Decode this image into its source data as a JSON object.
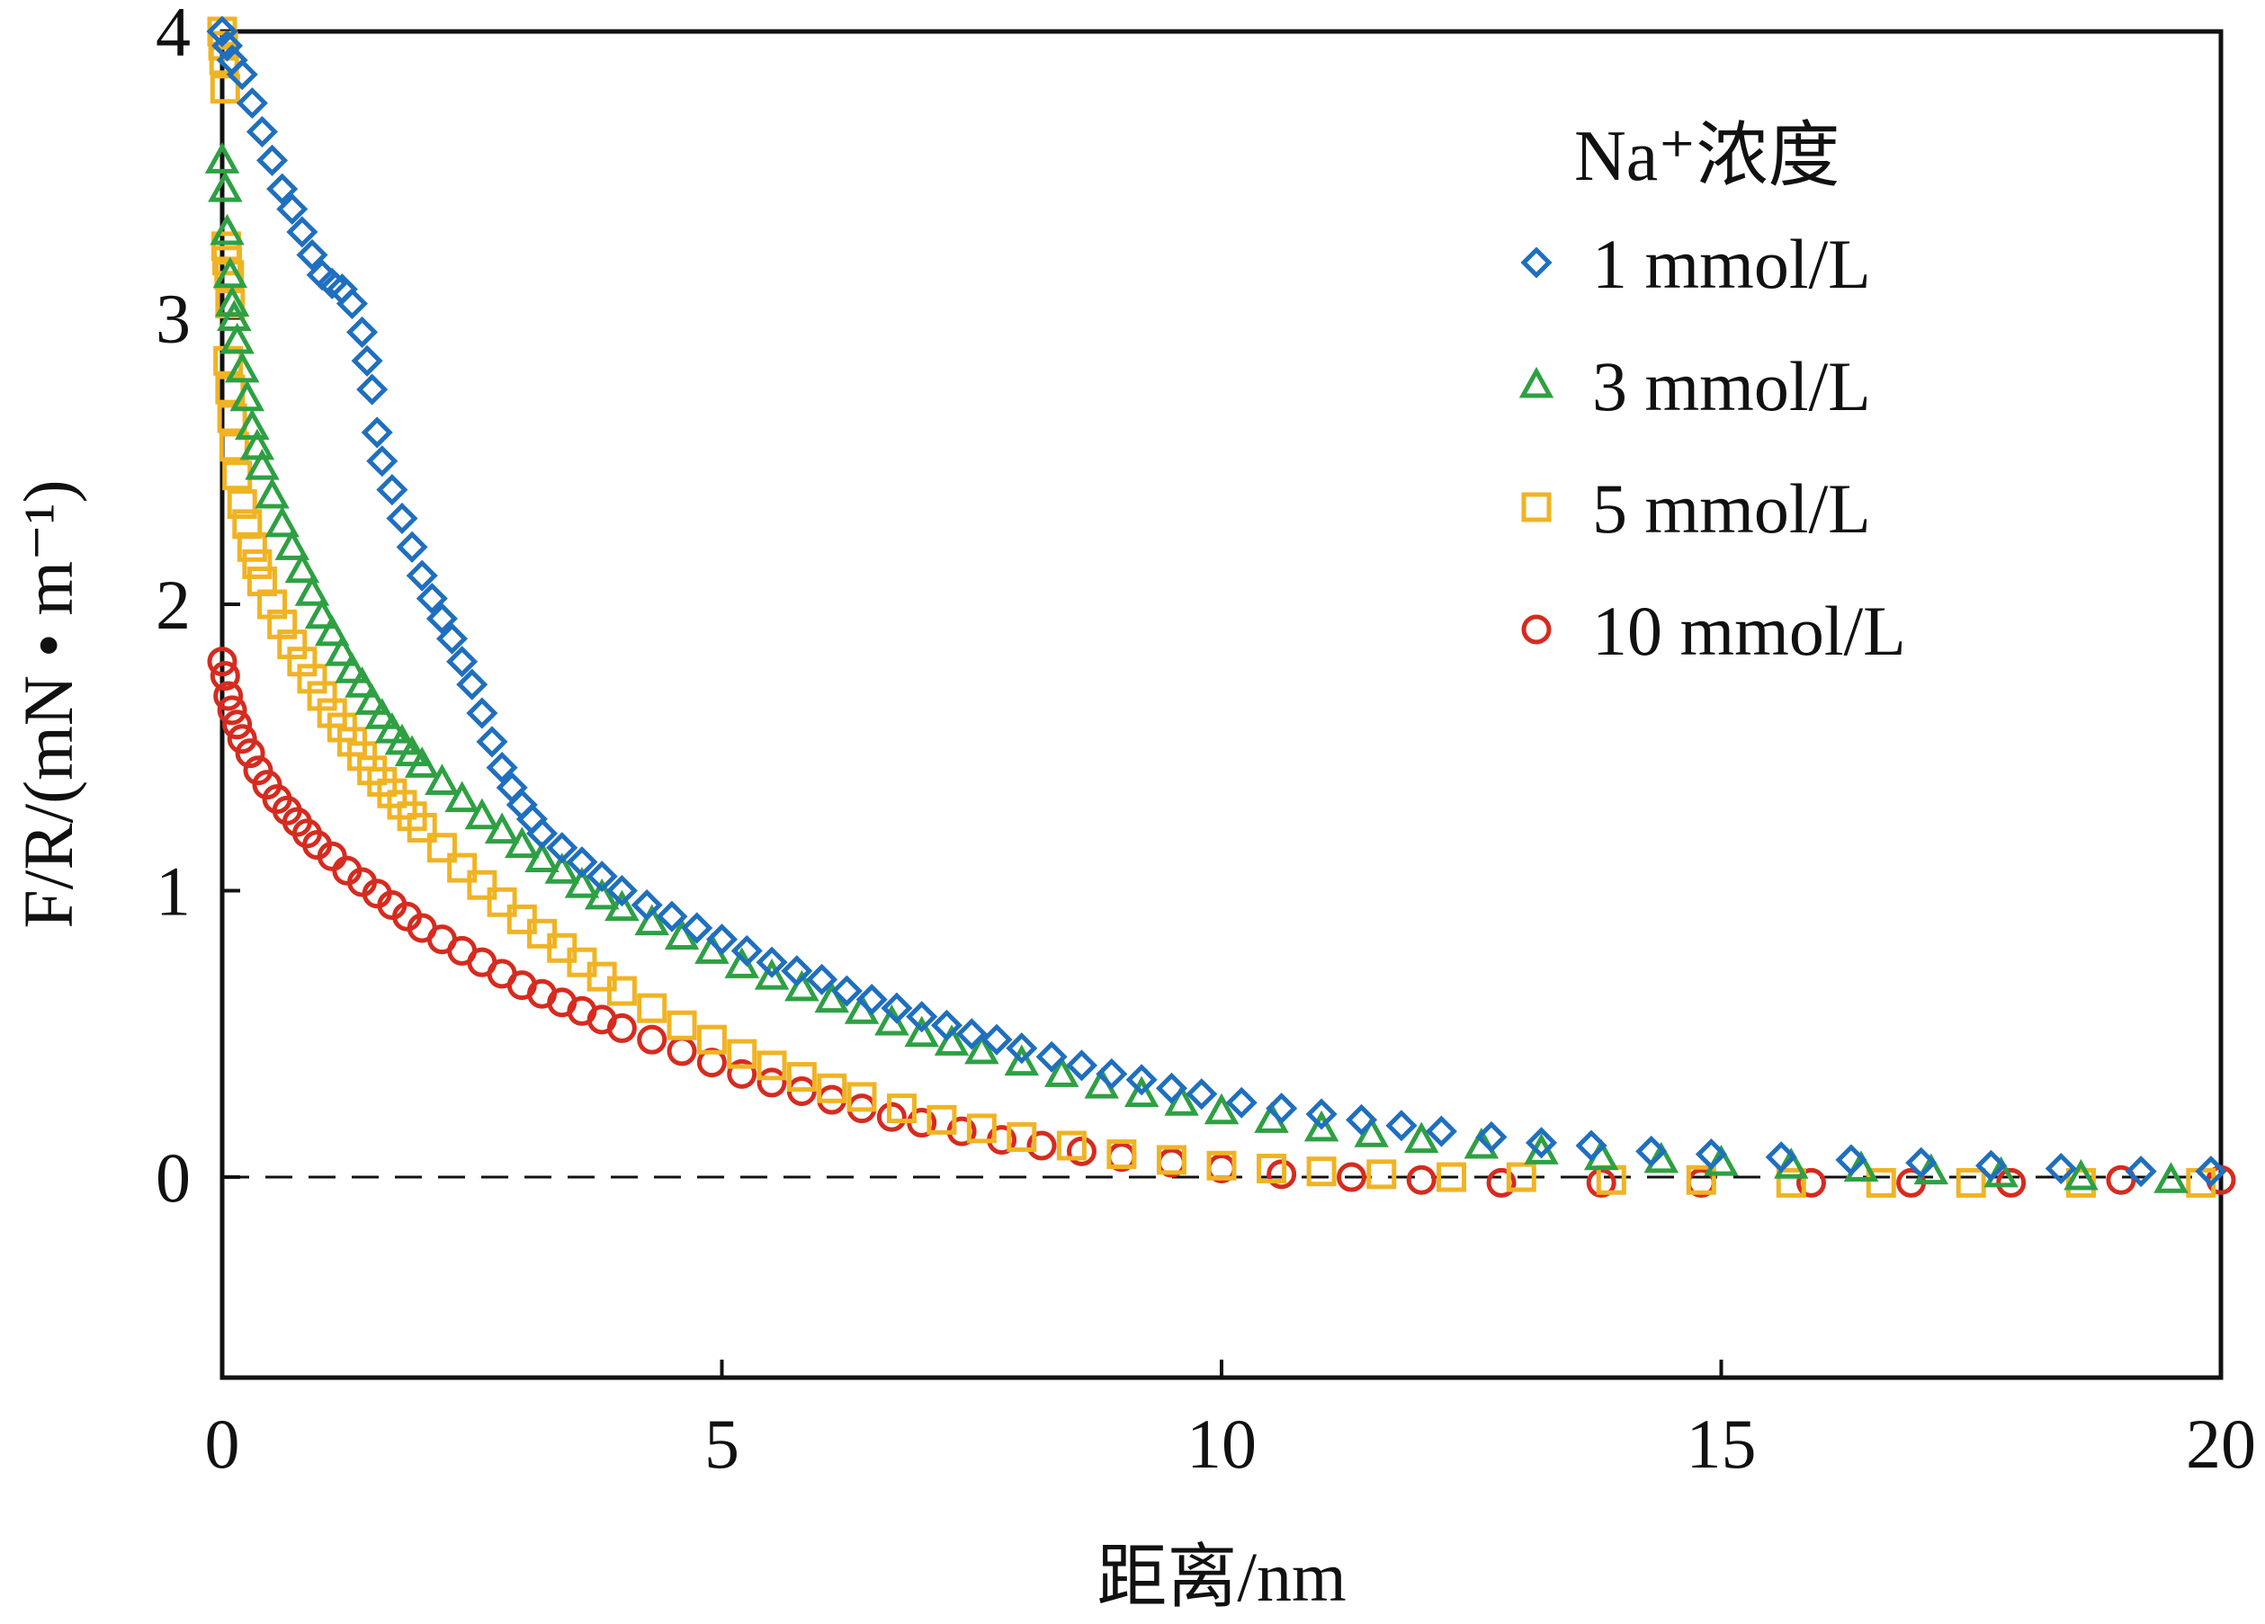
{
  "chart_data": {
    "type": "scatter",
    "xlabel": "距离/nm",
    "ylabel": "F/R/(mN • m⁻¹)",
    "xlim": [
      0,
      20
    ],
    "ylim": [
      -0.7,
      4
    ],
    "xticks": [
      "0",
      "5",
      "10",
      "15",
      "20"
    ],
    "yticks": [
      "0",
      "1",
      "2",
      "3",
      "4"
    ],
    "grid": false,
    "zero_line": "dashed",
    "legend": {
      "title": "Na⁺浓度",
      "position": "top-right"
    },
    "series": [
      {
        "name": "1 mmol/L",
        "marker": "diamond",
        "color": "#1f6fbf",
        "points": [
          [
            0.0,
            4.0
          ],
          [
            0.05,
            3.95
          ],
          [
            0.1,
            3.9
          ],
          [
            0.2,
            3.85
          ],
          [
            0.3,
            3.75
          ],
          [
            0.4,
            3.65
          ],
          [
            0.5,
            3.55
          ],
          [
            0.6,
            3.45
          ],
          [
            0.7,
            3.38
          ],
          [
            0.8,
            3.3
          ],
          [
            0.9,
            3.22
          ],
          [
            1.0,
            3.15
          ],
          [
            1.1,
            3.12
          ],
          [
            1.2,
            3.1
          ],
          [
            1.3,
            3.05
          ],
          [
            1.4,
            2.95
          ],
          [
            1.45,
            2.85
          ],
          [
            1.5,
            2.75
          ],
          [
            1.55,
            2.6
          ],
          [
            1.6,
            2.5
          ],
          [
            1.7,
            2.4
          ],
          [
            1.8,
            2.3
          ],
          [
            1.9,
            2.2
          ],
          [
            2.0,
            2.1
          ],
          [
            2.1,
            2.02
          ],
          [
            2.2,
            1.95
          ],
          [
            2.3,
            1.88
          ],
          [
            2.4,
            1.8
          ],
          [
            2.5,
            1.72
          ],
          [
            2.6,
            1.62
          ],
          [
            2.7,
            1.52
          ],
          [
            2.8,
            1.43
          ],
          [
            2.9,
            1.36
          ],
          [
            3.0,
            1.3
          ],
          [
            3.1,
            1.25
          ],
          [
            3.2,
            1.2
          ],
          [
            3.4,
            1.15
          ],
          [
            3.6,
            1.1
          ],
          [
            3.8,
            1.05
          ],
          [
            4.0,
            1.0
          ],
          [
            4.25,
            0.95
          ],
          [
            4.5,
            0.91
          ],
          [
            4.75,
            0.87
          ],
          [
            5.0,
            0.83
          ],
          [
            5.25,
            0.79
          ],
          [
            5.5,
            0.75
          ],
          [
            5.75,
            0.72
          ],
          [
            6.0,
            0.69
          ],
          [
            6.25,
            0.65
          ],
          [
            6.5,
            0.62
          ],
          [
            6.75,
            0.59
          ],
          [
            7.0,
            0.56
          ],
          [
            7.25,
            0.53
          ],
          [
            7.5,
            0.5
          ],
          [
            7.75,
            0.48
          ],
          [
            8.0,
            0.45
          ],
          [
            8.3,
            0.42
          ],
          [
            8.6,
            0.39
          ],
          [
            8.9,
            0.36
          ],
          [
            9.2,
            0.34
          ],
          [
            9.5,
            0.31
          ],
          [
            9.8,
            0.29
          ],
          [
            10.2,
            0.26
          ],
          [
            10.6,
            0.24
          ],
          [
            11.0,
            0.22
          ],
          [
            11.4,
            0.2
          ],
          [
            11.8,
            0.18
          ],
          [
            12.2,
            0.16
          ],
          [
            12.7,
            0.14
          ],
          [
            13.2,
            0.12
          ],
          [
            13.7,
            0.11
          ],
          [
            14.3,
            0.09
          ],
          [
            14.9,
            0.08
          ],
          [
            15.6,
            0.07
          ],
          [
            16.3,
            0.06
          ],
          [
            17.0,
            0.05
          ],
          [
            17.7,
            0.04
          ],
          [
            18.4,
            0.03
          ],
          [
            19.2,
            0.02
          ],
          [
            19.9,
            0.02
          ]
        ]
      },
      {
        "name": "3 mmol/L",
        "marker": "triangle",
        "color": "#2ea043",
        "points": [
          [
            0.0,
            3.55
          ],
          [
            0.03,
            3.45
          ],
          [
            0.05,
            3.3
          ],
          [
            0.08,
            3.15
          ],
          [
            0.1,
            3.05
          ],
          [
            0.12,
            3.0
          ],
          [
            0.15,
            2.92
          ],
          [
            0.2,
            2.82
          ],
          [
            0.25,
            2.72
          ],
          [
            0.3,
            2.62
          ],
          [
            0.35,
            2.55
          ],
          [
            0.4,
            2.48
          ],
          [
            0.5,
            2.38
          ],
          [
            0.6,
            2.28
          ],
          [
            0.7,
            2.2
          ],
          [
            0.8,
            2.12
          ],
          [
            0.9,
            2.04
          ],
          [
            1.0,
            1.96
          ],
          [
            1.1,
            1.9
          ],
          [
            1.2,
            1.83
          ],
          [
            1.3,
            1.77
          ],
          [
            1.4,
            1.72
          ],
          [
            1.5,
            1.66
          ],
          [
            1.6,
            1.61
          ],
          [
            1.7,
            1.56
          ],
          [
            1.8,
            1.52
          ],
          [
            1.9,
            1.48
          ],
          [
            2.0,
            1.44
          ],
          [
            2.2,
            1.38
          ],
          [
            2.4,
            1.32
          ],
          [
            2.6,
            1.26
          ],
          [
            2.8,
            1.21
          ],
          [
            3.0,
            1.16
          ],
          [
            3.2,
            1.11
          ],
          [
            3.4,
            1.07
          ],
          [
            3.6,
            1.02
          ],
          [
            3.8,
            0.98
          ],
          [
            4.0,
            0.94
          ],
          [
            4.3,
            0.89
          ],
          [
            4.6,
            0.84
          ],
          [
            4.9,
            0.79
          ],
          [
            5.2,
            0.74
          ],
          [
            5.5,
            0.7
          ],
          [
            5.8,
            0.66
          ],
          [
            6.1,
            0.62
          ],
          [
            6.4,
            0.58
          ],
          [
            6.7,
            0.54
          ],
          [
            7.0,
            0.5
          ],
          [
            7.3,
            0.47
          ],
          [
            7.6,
            0.44
          ],
          [
            8.0,
            0.4
          ],
          [
            8.4,
            0.36
          ],
          [
            8.8,
            0.32
          ],
          [
            9.2,
            0.29
          ],
          [
            9.6,
            0.26
          ],
          [
            10.0,
            0.23
          ],
          [
            10.5,
            0.2
          ],
          [
            11.0,
            0.17
          ],
          [
            11.5,
            0.15
          ],
          [
            12.0,
            0.13
          ],
          [
            12.6,
            0.11
          ],
          [
            13.2,
            0.09
          ],
          [
            13.8,
            0.07
          ],
          [
            14.4,
            0.06
          ],
          [
            15.0,
            0.05
          ],
          [
            15.7,
            0.04
          ],
          [
            16.4,
            0.03
          ],
          [
            17.1,
            0.02
          ],
          [
            17.8,
            0.01
          ],
          [
            18.6,
            0.0
          ],
          [
            19.5,
            -0.01
          ]
        ]
      },
      {
        "name": "5 mmol/L",
        "marker": "square",
        "color": "#f0b323",
        "points": [
          [
            0.0,
            4.0
          ],
          [
            0.01,
            3.95
          ],
          [
            0.02,
            3.9
          ],
          [
            0.03,
            3.8
          ],
          [
            0.04,
            3.25
          ],
          [
            0.05,
            3.2
          ],
          [
            0.07,
            3.15
          ],
          [
            0.08,
            3.05
          ],
          [
            0.06,
            2.85
          ],
          [
            0.08,
            2.75
          ],
          [
            0.1,
            2.65
          ],
          [
            0.12,
            2.55
          ],
          [
            0.15,
            2.45
          ],
          [
            0.2,
            2.35
          ],
          [
            0.25,
            2.28
          ],
          [
            0.3,
            2.2
          ],
          [
            0.35,
            2.14
          ],
          [
            0.4,
            2.08
          ],
          [
            0.5,
            2.0
          ],
          [
            0.6,
            1.93
          ],
          [
            0.7,
            1.86
          ],
          [
            0.8,
            1.8
          ],
          [
            0.9,
            1.74
          ],
          [
            1.0,
            1.68
          ],
          [
            1.1,
            1.62
          ],
          [
            1.2,
            1.57
          ],
          [
            1.3,
            1.52
          ],
          [
            1.4,
            1.47
          ],
          [
            1.5,
            1.42
          ],
          [
            1.6,
            1.38
          ],
          [
            1.7,
            1.34
          ],
          [
            1.8,
            1.3
          ],
          [
            1.9,
            1.26
          ],
          [
            2.0,
            1.22
          ],
          [
            2.2,
            1.15
          ],
          [
            2.4,
            1.08
          ],
          [
            2.6,
            1.02
          ],
          [
            2.8,
            0.96
          ],
          [
            3.0,
            0.9
          ],
          [
            3.2,
            0.85
          ],
          [
            3.4,
            0.8
          ],
          [
            3.6,
            0.75
          ],
          [
            3.8,
            0.7
          ],
          [
            4.0,
            0.65
          ],
          [
            4.3,
            0.59
          ],
          [
            4.6,
            0.53
          ],
          [
            4.9,
            0.48
          ],
          [
            5.2,
            0.43
          ],
          [
            5.5,
            0.39
          ],
          [
            5.8,
            0.35
          ],
          [
            6.1,
            0.31
          ],
          [
            6.4,
            0.28
          ],
          [
            6.8,
            0.24
          ],
          [
            7.2,
            0.2
          ],
          [
            7.6,
            0.17
          ],
          [
            8.0,
            0.14
          ],
          [
            8.5,
            0.11
          ],
          [
            9.0,
            0.08
          ],
          [
            9.5,
            0.06
          ],
          [
            10.0,
            0.04
          ],
          [
            10.5,
            0.03
          ],
          [
            11.0,
            0.02
          ],
          [
            11.6,
            0.01
          ],
          [
            12.3,
            0.0
          ],
          [
            13.0,
            0.0
          ],
          [
            13.9,
            -0.01
          ],
          [
            14.8,
            -0.01
          ],
          [
            15.7,
            -0.02
          ],
          [
            16.6,
            -0.02
          ],
          [
            17.5,
            -0.02
          ],
          [
            18.6,
            -0.02
          ],
          [
            19.8,
            -0.02
          ]
        ]
      },
      {
        "name": "10 mmol/L",
        "marker": "circle",
        "color": "#d62b1f",
        "points": [
          [
            0.0,
            1.8
          ],
          [
            0.03,
            1.75
          ],
          [
            0.06,
            1.68
          ],
          [
            0.1,
            1.63
          ],
          [
            0.15,
            1.58
          ],
          [
            0.2,
            1.53
          ],
          [
            0.28,
            1.48
          ],
          [
            0.36,
            1.42
          ],
          [
            0.45,
            1.37
          ],
          [
            0.55,
            1.32
          ],
          [
            0.65,
            1.28
          ],
          [
            0.75,
            1.24
          ],
          [
            0.85,
            1.2
          ],
          [
            0.95,
            1.16
          ],
          [
            1.1,
            1.12
          ],
          [
            1.25,
            1.07
          ],
          [
            1.4,
            1.03
          ],
          [
            1.55,
            0.99
          ],
          [
            1.7,
            0.95
          ],
          [
            1.85,
            0.91
          ],
          [
            2.0,
            0.87
          ],
          [
            2.2,
            0.83
          ],
          [
            2.4,
            0.79
          ],
          [
            2.6,
            0.75
          ],
          [
            2.8,
            0.71
          ],
          [
            3.0,
            0.67
          ],
          [
            3.2,
            0.64
          ],
          [
            3.4,
            0.61
          ],
          [
            3.6,
            0.58
          ],
          [
            3.8,
            0.55
          ],
          [
            4.0,
            0.52
          ],
          [
            4.3,
            0.48
          ],
          [
            4.6,
            0.44
          ],
          [
            4.9,
            0.4
          ],
          [
            5.2,
            0.36
          ],
          [
            5.5,
            0.33
          ],
          [
            5.8,
            0.3
          ],
          [
            6.1,
            0.27
          ],
          [
            6.4,
            0.24
          ],
          [
            6.7,
            0.21
          ],
          [
            7.0,
            0.19
          ],
          [
            7.4,
            0.16
          ],
          [
            7.8,
            0.13
          ],
          [
            8.2,
            0.11
          ],
          [
            8.6,
            0.09
          ],
          [
            9.0,
            0.07
          ],
          [
            9.5,
            0.05
          ],
          [
            10.0,
            0.03
          ],
          [
            10.6,
            0.01
          ],
          [
            11.3,
            0.0
          ],
          [
            12.0,
            -0.01
          ],
          [
            12.8,
            -0.02
          ],
          [
            13.8,
            -0.02
          ],
          [
            14.8,
            -0.02
          ],
          [
            15.9,
            -0.02
          ],
          [
            16.9,
            -0.02
          ],
          [
            17.9,
            -0.02
          ],
          [
            19.0,
            -0.01
          ],
          [
            20.0,
            -0.01
          ]
        ]
      }
    ]
  }
}
